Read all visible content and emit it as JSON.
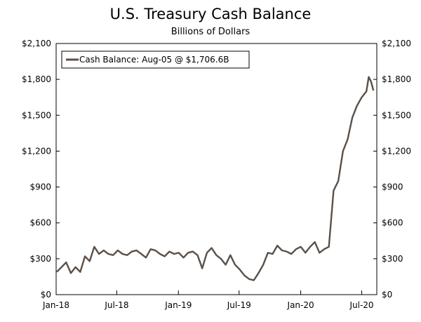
{
  "chart_data": {
    "type": "line",
    "title": "U.S. Treasury Cash Balance",
    "subtitle": "Billions of Dollars",
    "xlabel": "",
    "ylabel": "",
    "ylim": [
      0,
      2100
    ],
    "y_ticks": [
      0,
      300,
      600,
      900,
      1200,
      1500,
      1800,
      2100
    ],
    "y_tick_labels": [
      "$0",
      "$300",
      "$600",
      "$900",
      "$1,200",
      "$1,500",
      "$1,800",
      "$2,100"
    ],
    "x_ticks": [
      "2018-01-01",
      "2018-07-01",
      "2019-01-01",
      "2019-07-01",
      "2020-01-01",
      "2020-07-01"
    ],
    "x_tick_labels": [
      "Jan-18",
      "Jul-18",
      "Jan-19",
      "Jul-19",
      "Jan-20",
      "Jul-20"
    ],
    "xlim": [
      "2018-01-01",
      "2020-08-15"
    ],
    "grid": false,
    "legend_position": "top-left",
    "line_color": "#5b5048",
    "series": [
      {
        "name": "Cash Balance: Aug-05 @ $1,706.6B",
        "x": [
          "2018-01-03",
          "2018-01-17",
          "2018-01-31",
          "2018-02-14",
          "2018-02-28",
          "2018-03-14",
          "2018-03-28",
          "2018-04-11",
          "2018-04-25",
          "2018-05-09",
          "2018-05-23",
          "2018-06-06",
          "2018-06-20",
          "2018-07-04",
          "2018-07-18",
          "2018-08-01",
          "2018-08-15",
          "2018-08-29",
          "2018-09-12",
          "2018-09-26",
          "2018-10-10",
          "2018-10-24",
          "2018-11-07",
          "2018-11-21",
          "2018-12-05",
          "2018-12-19",
          "2019-01-02",
          "2019-01-16",
          "2019-01-30",
          "2019-02-13",
          "2019-02-27",
          "2019-03-13",
          "2019-03-27",
          "2019-04-10",
          "2019-04-24",
          "2019-05-08",
          "2019-05-22",
          "2019-06-05",
          "2019-06-19",
          "2019-07-03",
          "2019-07-17",
          "2019-07-31",
          "2019-08-14",
          "2019-08-28",
          "2019-09-11",
          "2019-09-25",
          "2019-10-09",
          "2019-10-23",
          "2019-11-06",
          "2019-11-20",
          "2019-12-04",
          "2019-12-18",
          "2020-01-01",
          "2020-01-15",
          "2020-01-29",
          "2020-02-12",
          "2020-02-26",
          "2020-03-11",
          "2020-03-25",
          "2020-04-08",
          "2020-04-22",
          "2020-05-06",
          "2020-05-20",
          "2020-06-03",
          "2020-06-17",
          "2020-07-01",
          "2020-07-15",
          "2020-07-22",
          "2020-07-29",
          "2020-08-05"
        ],
        "values": [
          190,
          230,
          270,
          180,
          230,
          190,
          320,
          280,
          400,
          340,
          370,
          340,
          330,
          370,
          340,
          330,
          360,
          370,
          340,
          310,
          380,
          370,
          340,
          320,
          360,
          340,
          350,
          310,
          350,
          360,
          330,
          220,
          350,
          390,
          330,
          300,
          250,
          330,
          250,
          210,
          160,
          130,
          120,
          180,
          250,
          350,
          340,
          410,
          370,
          360,
          340,
          380,
          400,
          350,
          400,
          440,
          350,
          380,
          400,
          870,
          950,
          1200,
          1300,
          1480,
          1580,
          1650,
          1700,
          1820,
          1780,
          1706.6
        ]
      }
    ]
  }
}
